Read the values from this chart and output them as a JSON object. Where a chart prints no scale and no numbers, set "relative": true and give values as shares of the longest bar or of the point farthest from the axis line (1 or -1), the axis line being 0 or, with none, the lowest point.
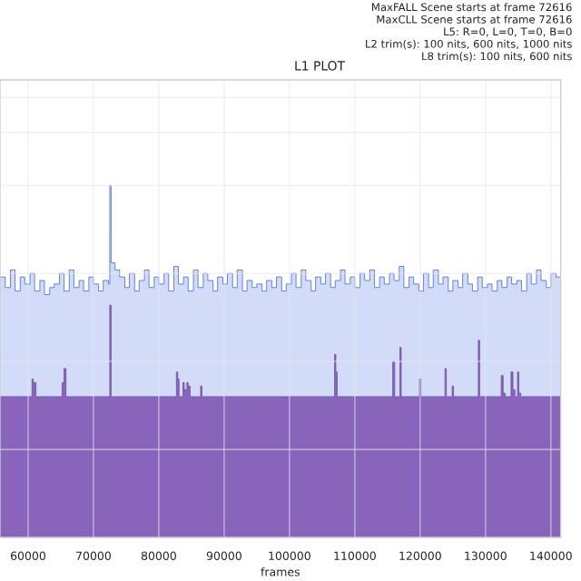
{
  "chart_data": {
    "type": "area",
    "title": "L1 PLOT",
    "xlabel": "frames",
    "relative": true,
    "annotations": [
      "MaxFALL Scene starts at frame 72616",
      "MaxCLL Scene starts at frame 72616",
      "L5: R=0, L=0, T=0, B=0",
      "L2 trim(s): 100 nits, 600 nits, 1000 nits",
      "L8 trim(s): 100 nits, 600 nits"
    ],
    "xlim": [
      55700,
      141500
    ],
    "xticks": [
      60000,
      70000,
      80000,
      90000,
      100000,
      110000,
      120000,
      130000,
      140000
    ],
    "grid": true,
    "tick_labels": "x",
    "series": [
      {
        "color": "#4a6fe3",
        "x": [
          55700,
          56500,
          57300,
          58000,
          58800,
          59500,
          60300,
          61000,
          61800,
          62500,
          63300,
          64000,
          64800,
          65500,
          66300,
          67000,
          67800,
          68500,
          69300,
          70000,
          70800,
          71500,
          72300,
          72500,
          72700,
          73300,
          74000,
          74800,
          75500,
          76300,
          77000,
          77800,
          78500,
          79300,
          80000,
          80800,
          81500,
          82300,
          83000,
          83800,
          84500,
          85300,
          86000,
          86800,
          87500,
          88300,
          89000,
          89800,
          90500,
          91300,
          92000,
          92800,
          93500,
          94300,
          95000,
          95800,
          96500,
          97300,
          98000,
          98800,
          99500,
          100300,
          101000,
          101800,
          102500,
          103300,
          104000,
          104800,
          105500,
          106300,
          107000,
          107800,
          108500,
          109300,
          110000,
          110800,
          111500,
          112300,
          113000,
          113800,
          114500,
          115300,
          116000,
          116800,
          117500,
          118300,
          119000,
          119800,
          120500,
          121300,
          122000,
          122800,
          123500,
          124300,
          125000,
          125800,
          126500,
          127300,
          128000,
          128800,
          129500,
          130300,
          131000,
          131800,
          132500,
          133300,
          134000,
          134800,
          135500,
          136300,
          137000,
          137800,
          138500,
          139300,
          140000,
          140800,
          141500
        ],
        "values": [
          0.74,
          0.71,
          0.76,
          0.7,
          0.74,
          0.72,
          0.75,
          0.7,
          0.73,
          0.69,
          0.71,
          0.72,
          0.75,
          0.7,
          0.76,
          0.71,
          0.73,
          0.7,
          0.74,
          0.72,
          0.7,
          0.73,
          0.72,
          1.0,
          0.78,
          0.76,
          0.74,
          0.71,
          0.75,
          0.7,
          0.73,
          0.76,
          0.71,
          0.74,
          0.72,
          0.75,
          0.7,
          0.77,
          0.72,
          0.74,
          0.7,
          0.76,
          0.71,
          0.75,
          0.73,
          0.7,
          0.74,
          0.72,
          0.75,
          0.71,
          0.76,
          0.7,
          0.73,
          0.71,
          0.72,
          0.7,
          0.73,
          0.71,
          0.74,
          0.7,
          0.72,
          0.75,
          0.71,
          0.76,
          0.73,
          0.7,
          0.74,
          0.72,
          0.75,
          0.71,
          0.73,
          0.76,
          0.72,
          0.74,
          0.71,
          0.75,
          0.73,
          0.76,
          0.71,
          0.74,
          0.72,
          0.75,
          0.73,
          0.77,
          0.71,
          0.74,
          0.72,
          0.7,
          0.75,
          0.71,
          0.76,
          0.72,
          0.74,
          0.7,
          0.73,
          0.71,
          0.75,
          0.72,
          0.7,
          0.74,
          0.71,
          0.72,
          0.7,
          0.73,
          0.71,
          0.74,
          0.72,
          0.73,
          0.7,
          0.75,
          0.72,
          0.76,
          0.73,
          0.71,
          0.75,
          0.74,
          0.72
        ]
      },
      {
        "color": "#7b4fb0",
        "x": [
          55700,
          60600,
          60800,
          61200,
          65200,
          65500,
          65800,
          72400,
          72500,
          72700,
          82700,
          82900,
          83100,
          83700,
          83900,
          84300,
          84500,
          84800,
          86400,
          86600,
          106900,
          107100,
          107300,
          115800,
          116100,
          116400,
          116900,
          117100,
          117300,
          119900,
          120100,
          123800,
          124000,
          124200,
          124900,
          125100,
          128900,
          129100,
          129300,
          132400,
          132700,
          133000,
          133900,
          134200,
          134500,
          134900,
          135100,
          135400,
          141500
        ],
        "values": [
          0.4,
          0.45,
          0.44,
          0.4,
          0.44,
          0.48,
          0.4,
          0.4,
          0.66,
          0.4,
          0.47,
          0.45,
          0.4,
          0.44,
          0.42,
          0.44,
          0.43,
          0.4,
          0.43,
          0.4,
          0.52,
          0.47,
          0.4,
          0.5,
          0.4,
          0.4,
          0.54,
          0.4,
          0.4,
          0.45,
          0.4,
          0.48,
          0.4,
          0.4,
          0.43,
          0.4,
          0.56,
          0.4,
          0.4,
          0.46,
          0.41,
          0.4,
          0.47,
          0.42,
          0.4,
          0.47,
          0.41,
          0.4,
          0.4
        ]
      }
    ]
  }
}
